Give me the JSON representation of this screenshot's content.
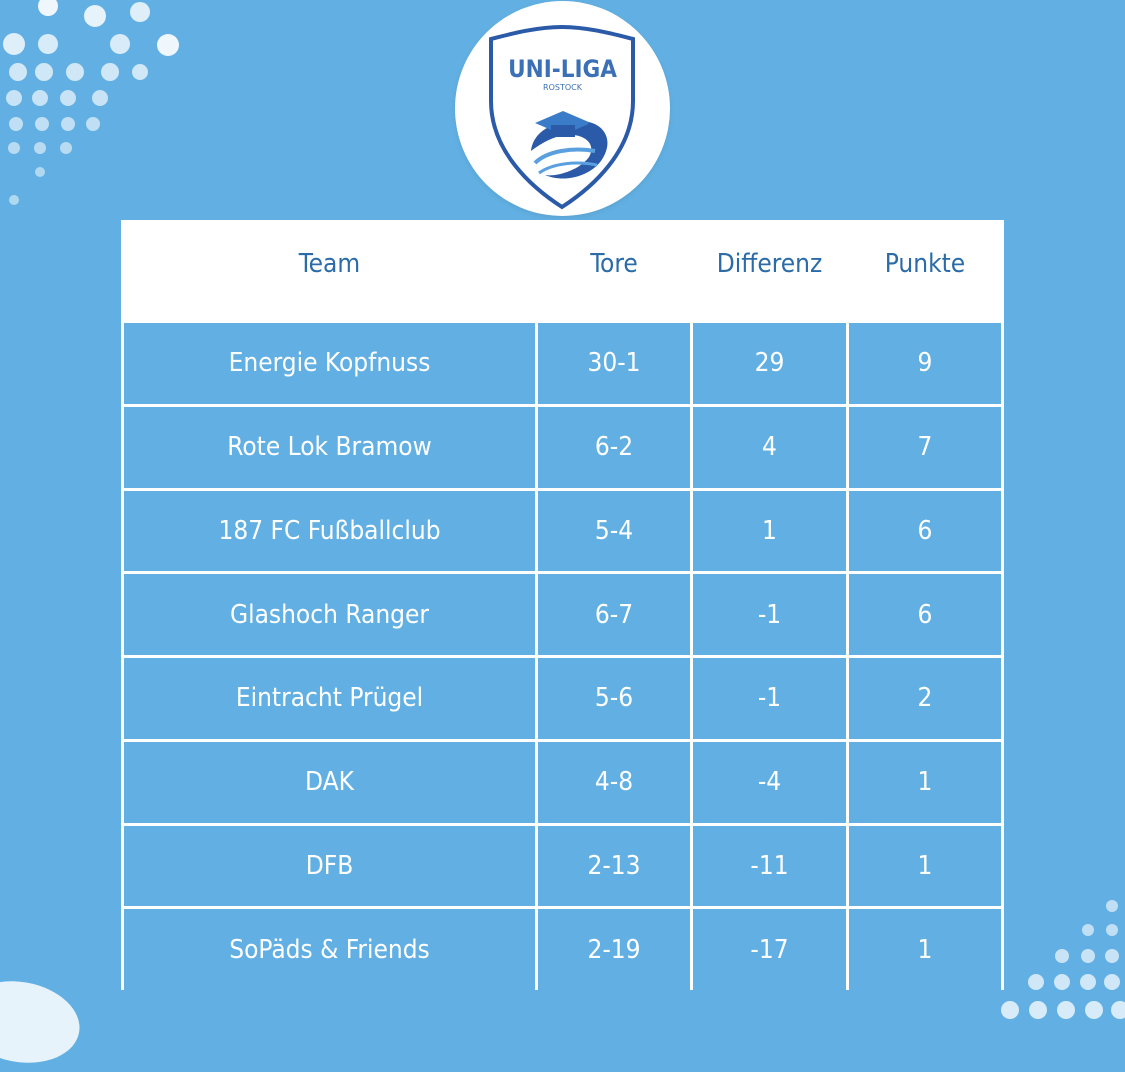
{
  "logo": {
    "title": "UNI-LIGA",
    "subtitle": "ROSTOCK"
  },
  "table": {
    "headers": [
      "Team",
      "Tore",
      "Differenz",
      "Punkte"
    ],
    "rows": [
      [
        "Energie Kopfnuss",
        "30-1",
        "29",
        "9"
      ],
      [
        "Rote Lok Bramow",
        "6-2",
        "4",
        "7"
      ],
      [
        "187 FC Fußballclub",
        "5-4",
        "1",
        "6"
      ],
      [
        "Glashoch Ranger",
        "6-7",
        "-1",
        "6"
      ],
      [
        "Eintracht Prügel",
        "5-6",
        "-1",
        "2"
      ],
      [
        "DAK",
        "4-8",
        "-4",
        "1"
      ],
      [
        "DFB",
        "2-13",
        "-11",
        "1"
      ],
      [
        "SoPäds & Friends",
        "2-19",
        "-17",
        "1"
      ]
    ]
  },
  "colors": {
    "background": "#62b0e3",
    "header_text": "#2b6ca8",
    "cell_text": "#ffffff",
    "grid": "#ffffff"
  }
}
